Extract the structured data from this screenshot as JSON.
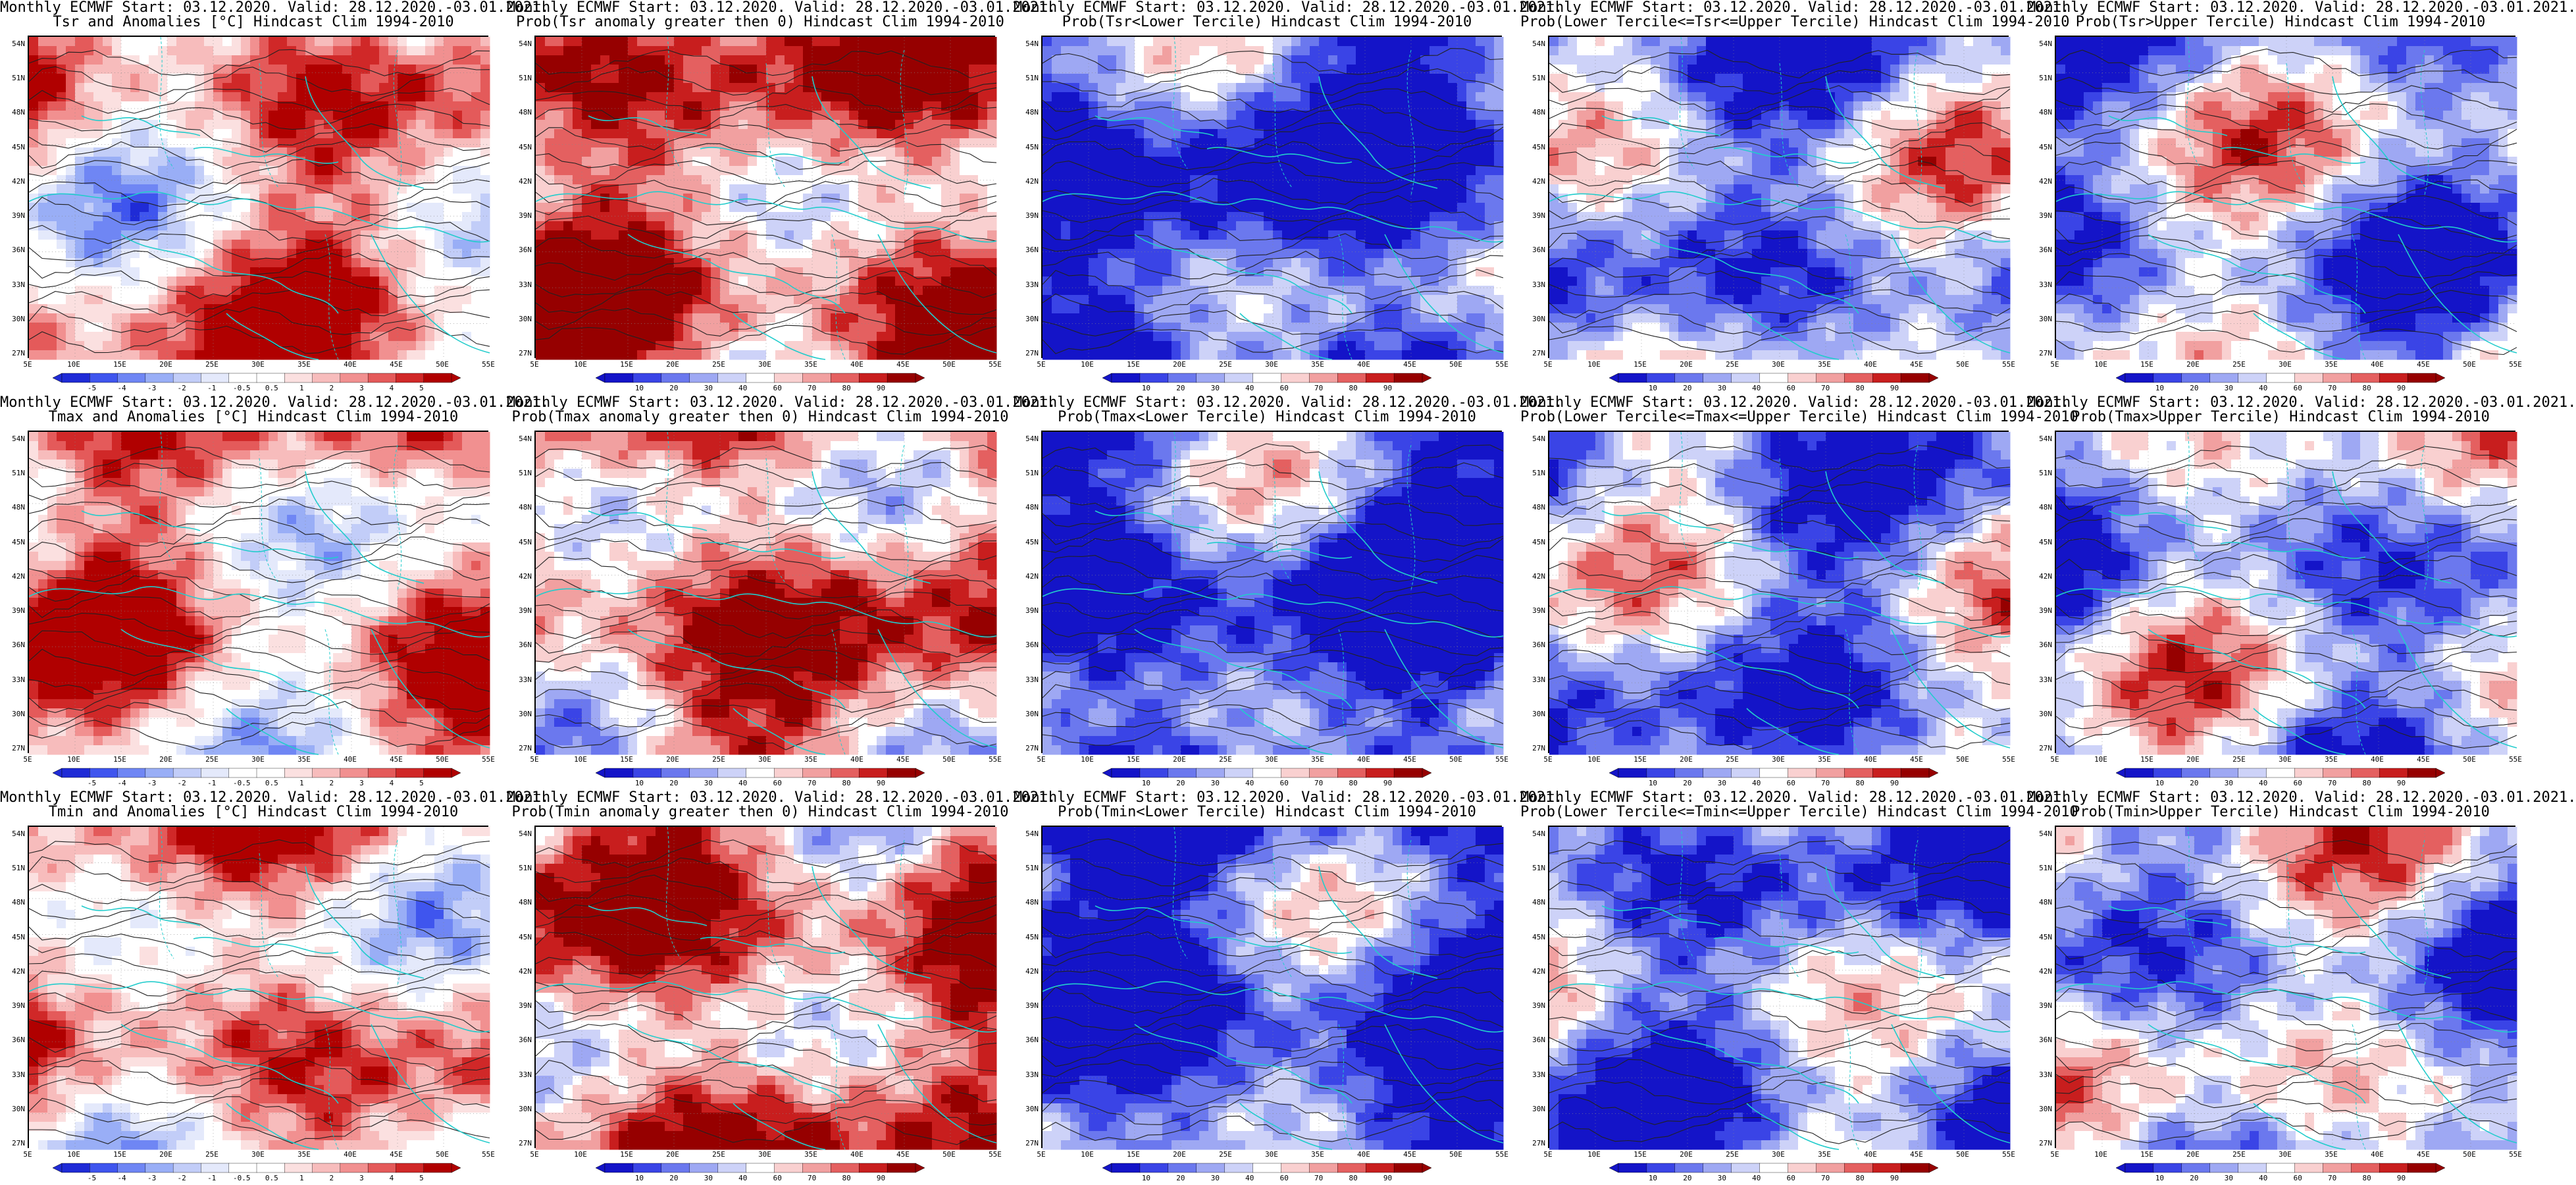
{
  "grid": {
    "rows": 3,
    "cols": 5
  },
  "lat_ticks": [
    "54N",
    "51N",
    "48N",
    "45N",
    "42N",
    "39N",
    "36N",
    "33N",
    "30N",
    "27N"
  ],
  "lon_ticks": [
    "5E",
    "10E",
    "15E",
    "20E",
    "25E",
    "30E",
    "35E",
    "40E",
    "45E",
    "50E",
    "55E"
  ],
  "colors": {
    "coast": "#22cccc",
    "contour": "#222222",
    "anom_scale": [
      "#1f2bd6",
      "#3f55ee",
      "#6f86f4",
      "#99aef6",
      "#c2cdf8",
      "#e4e9fb",
      "#ffffff",
      "#ffffff",
      "#fbe0e0",
      "#f7bcbc",
      "#f19090",
      "#e45a5a",
      "#d02828",
      "#b00000"
    ],
    "prob_scale": [
      "#1414c8",
      "#3a44e6",
      "#6b78ee",
      "#9ea8f3",
      "#cdd2f8",
      "#ffffff",
      "#f9d0d0",
      "#f1a0a0",
      "#e46060",
      "#c81e1e",
      "#960000"
    ]
  },
  "colorbars": {
    "anomaly_labels": [
      "-5",
      "-4",
      "-3",
      "-2",
      "-1",
      "-0.5",
      "0.5",
      "1",
      "2",
      "3",
      "4",
      "5"
    ],
    "probability_labels": [
      "10",
      "20",
      "30",
      "40",
      "60",
      "70",
      "80",
      "90"
    ]
  },
  "panels": [
    {
      "title1": "Monthly ECMWF Start: 03.12.2020. Valid: 28.12.2020.-03.01.2021.",
      "title2": "Tsr and Anomalies [°C] Hindcast Clim 1994-2010",
      "kind": "anomaly",
      "bias": 0.35,
      "seed": 3,
      "colorbar": true
    },
    {
      "title1": "Monthly ECMWF Start: 03.12.2020. Valid: 28.12.2020.-03.01.2021.",
      "title2": "Prob(Tsr anomaly greater then 0) Hindcast Clim 1994-2010",
      "kind": "prob",
      "bias": 0.45,
      "seed": 7,
      "colorbar": true
    },
    {
      "title1": "Monthly ECMWF Start: 03.12.2020. Valid: 28.12.2020.-03.01.2021.",
      "title2": "Prob(Tsr<Lower Tercile) Hindcast Clim 1994-2010",
      "kind": "prob",
      "bias": -0.75,
      "seed": 11,
      "colorbar": true
    },
    {
      "title1": "Monthly ECMWF Start: 03.12.2020. Valid: 28.12.2020.-03.01.2021.",
      "title2": "Prob(Lower Tercile<=Tsr<=Upper Tercile) Hindcast Clim 1994-2010",
      "kind": "prob",
      "bias": -0.35,
      "seed": 13,
      "colorbar": true
    },
    {
      "title1": "Monthly ECMWF Start: 03.12.2020. Valid: 28.12.2020.-03.01.2021.",
      "title2": "Prob(Tsr>Upper Tercile) Hindcast Clim 1994-2010",
      "kind": "prob",
      "bias": -0.3,
      "seed": 17,
      "colorbar": true
    },
    {
      "title1": "Monthly ECMWF Start: 03.12.2020. Valid: 28.12.2020.-03.01.2021.",
      "title2": "Tmax and Anomalies [°C] Hindcast Clim 1994-2010",
      "kind": "anomaly",
      "bias": 0.35,
      "seed": 19,
      "colorbar": true
    },
    {
      "title1": "Monthly ECMWF Start: 03.12.2020. Valid: 28.12.2020.-03.01.2021.",
      "title2": "Prob(Tmax anomaly greater then 0) Hindcast Clim 1994-2010",
      "kind": "prob",
      "bias": 0.45,
      "seed": 23,
      "colorbar": true
    },
    {
      "title1": "Monthly ECMWF Start: 03.12.2020. Valid: 28.12.2020.-03.01.2021.",
      "title2": "Prob(Tmax<Lower Tercile) Hindcast Clim 1994-2010",
      "kind": "prob",
      "bias": -0.75,
      "seed": 29,
      "colorbar": true
    },
    {
      "title1": "Monthly ECMWF Start: 03.12.2020. Valid: 28.12.2020.-03.01.2021.",
      "title2": "Prob(Lower Tercile<=Tmax<=Upper Tercile) Hindcast Clim 1994-2010",
      "kind": "prob",
      "bias": -0.35,
      "seed": 31,
      "colorbar": true
    },
    {
      "title1": "Monthly ECMWF Start: 03.12.2020. Valid: 28.12.2020.-03.01.2021.",
      "title2": "Prob(Tmax>Upper Tercile) Hindcast Clim 1994-2010",
      "kind": "prob",
      "bias": -0.3,
      "seed": 37,
      "colorbar": true
    },
    {
      "title1": "Monthly ECMWF Start: 03.12.2020. Valid: 28.12.2020.-03.01.2021.",
      "title2": "Tmin and Anomalies [°C] Hindcast Clim 1994-2010",
      "kind": "anomaly",
      "bias": 0.35,
      "seed": 41,
      "colorbar": true
    },
    {
      "title1": "Monthly ECMWF Start: 03.12.2020. Valid: 28.12.2020.-03.01.2021.",
      "title2": "Prob(Tmin anomaly greater then 0) Hindcast Clim 1994-2010",
      "kind": "prob",
      "bias": 0.5,
      "seed": 43,
      "colorbar": true
    },
    {
      "title1": "Monthly ECMWF Start: 03.12.2020. Valid: 28.12.2020.-03.01.2021.",
      "title2": "Prob(Tmin<Lower Tercile) Hindcast Clim 1994-2010",
      "kind": "prob",
      "bias": -0.8,
      "seed": 47,
      "colorbar": true
    },
    {
      "title1": "Monthly ECMWF Start: 03.12.2020. Valid: 28.12.2020.-03.01.2021.",
      "title2": "Prob(Lower Tercile<=Tmin<=Upper Tercile) Hindcast Clim 1994-2010",
      "kind": "prob",
      "bias": -0.4,
      "seed": 53,
      "colorbar": true
    },
    {
      "title1": "Monthly ECMWF Start: 03.12.2020. Valid: 28.12.2020.-03.01.2021.",
      "title2": "Prob(Tmin>Upper Tercile) Hindcast Clim 1994-2010",
      "kind": "prob",
      "bias": -0.25,
      "seed": 59,
      "colorbar": true
    }
  ]
}
